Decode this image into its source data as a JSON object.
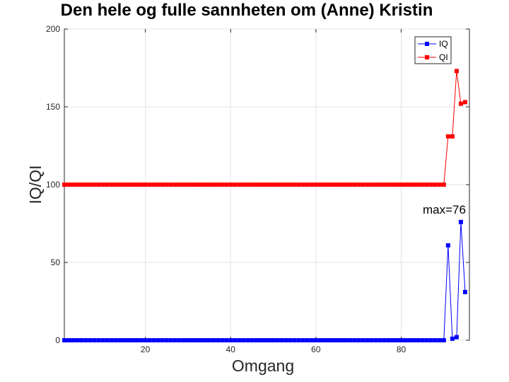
{
  "chart_data": {
    "type": "line",
    "title": "Den hele og fulle sannheten om (Anne) Kristin",
    "xlabel": "Omgang",
    "ylabel": "IQ/QI",
    "xlim": [
      1,
      96
    ],
    "ylim": [
      0,
      200
    ],
    "xticks": [
      20,
      40,
      60,
      80
    ],
    "yticks": [
      0,
      50,
      100,
      150,
      200
    ],
    "grid": true,
    "legend_position": "top-right",
    "annotation": "max=76",
    "series": [
      {
        "name": "IQ",
        "color": "#0000ff",
        "marker": "square",
        "x": [
          1,
          2,
          3,
          4,
          5,
          6,
          7,
          8,
          9,
          10,
          11,
          12,
          13,
          14,
          15,
          16,
          17,
          18,
          19,
          20,
          21,
          22,
          23,
          24,
          25,
          26,
          27,
          28,
          29,
          30,
          31,
          32,
          33,
          34,
          35,
          36,
          37,
          38,
          39,
          40,
          41,
          42,
          43,
          44,
          45,
          46,
          47,
          48,
          49,
          50,
          51,
          52,
          53,
          54,
          55,
          56,
          57,
          58,
          59,
          60,
          61,
          62,
          63,
          64,
          65,
          66,
          67,
          68,
          69,
          70,
          71,
          72,
          73,
          74,
          75,
          76,
          77,
          78,
          79,
          80,
          81,
          82,
          83,
          84,
          85,
          86,
          87,
          88,
          89,
          90,
          91,
          92,
          93,
          94,
          95
        ],
        "values": [
          0,
          0,
          0,
          0,
          0,
          0,
          0,
          0,
          0,
          0,
          0,
          0,
          0,
          0,
          0,
          0,
          0,
          0,
          0,
          0,
          0,
          0,
          0,
          0,
          0,
          0,
          0,
          0,
          0,
          0,
          0,
          0,
          0,
          0,
          0,
          0,
          0,
          0,
          0,
          0,
          0,
          0,
          0,
          0,
          0,
          0,
          0,
          0,
          0,
          0,
          0,
          0,
          0,
          0,
          0,
          0,
          0,
          0,
          0,
          0,
          0,
          0,
          0,
          0,
          0,
          0,
          0,
          0,
          0,
          0,
          0,
          0,
          0,
          0,
          0,
          0,
          0,
          0,
          0,
          0,
          0,
          0,
          0,
          0,
          0,
          0,
          0,
          0,
          0,
          0,
          61,
          1,
          2,
          76,
          31
        ]
      },
      {
        "name": "QI",
        "color": "#ff0000",
        "marker": "square",
        "x": [
          1,
          2,
          3,
          4,
          5,
          6,
          7,
          8,
          9,
          10,
          11,
          12,
          13,
          14,
          15,
          16,
          17,
          18,
          19,
          20,
          21,
          22,
          23,
          24,
          25,
          26,
          27,
          28,
          29,
          30,
          31,
          32,
          33,
          34,
          35,
          36,
          37,
          38,
          39,
          40,
          41,
          42,
          43,
          44,
          45,
          46,
          47,
          48,
          49,
          50,
          51,
          52,
          53,
          54,
          55,
          56,
          57,
          58,
          59,
          60,
          61,
          62,
          63,
          64,
          65,
          66,
          67,
          68,
          69,
          70,
          71,
          72,
          73,
          74,
          75,
          76,
          77,
          78,
          79,
          80,
          81,
          82,
          83,
          84,
          85,
          86,
          87,
          88,
          89,
          90,
          91,
          92,
          93,
          94,
          95
        ],
        "values": [
          100,
          100,
          100,
          100,
          100,
          100,
          100,
          100,
          100,
          100,
          100,
          100,
          100,
          100,
          100,
          100,
          100,
          100,
          100,
          100,
          100,
          100,
          100,
          100,
          100,
          100,
          100,
          100,
          100,
          100,
          100,
          100,
          100,
          100,
          100,
          100,
          100,
          100,
          100,
          100,
          100,
          100,
          100,
          100,
          100,
          100,
          100,
          100,
          100,
          100,
          100,
          100,
          100,
          100,
          100,
          100,
          100,
          100,
          100,
          100,
          100,
          100,
          100,
          100,
          100,
          100,
          100,
          100,
          100,
          100,
          100,
          100,
          100,
          100,
          100,
          100,
          100,
          100,
          100,
          100,
          100,
          100,
          100,
          100,
          100,
          100,
          100,
          100,
          100,
          100,
          131,
          131,
          173,
          152,
          153
        ]
      }
    ]
  }
}
